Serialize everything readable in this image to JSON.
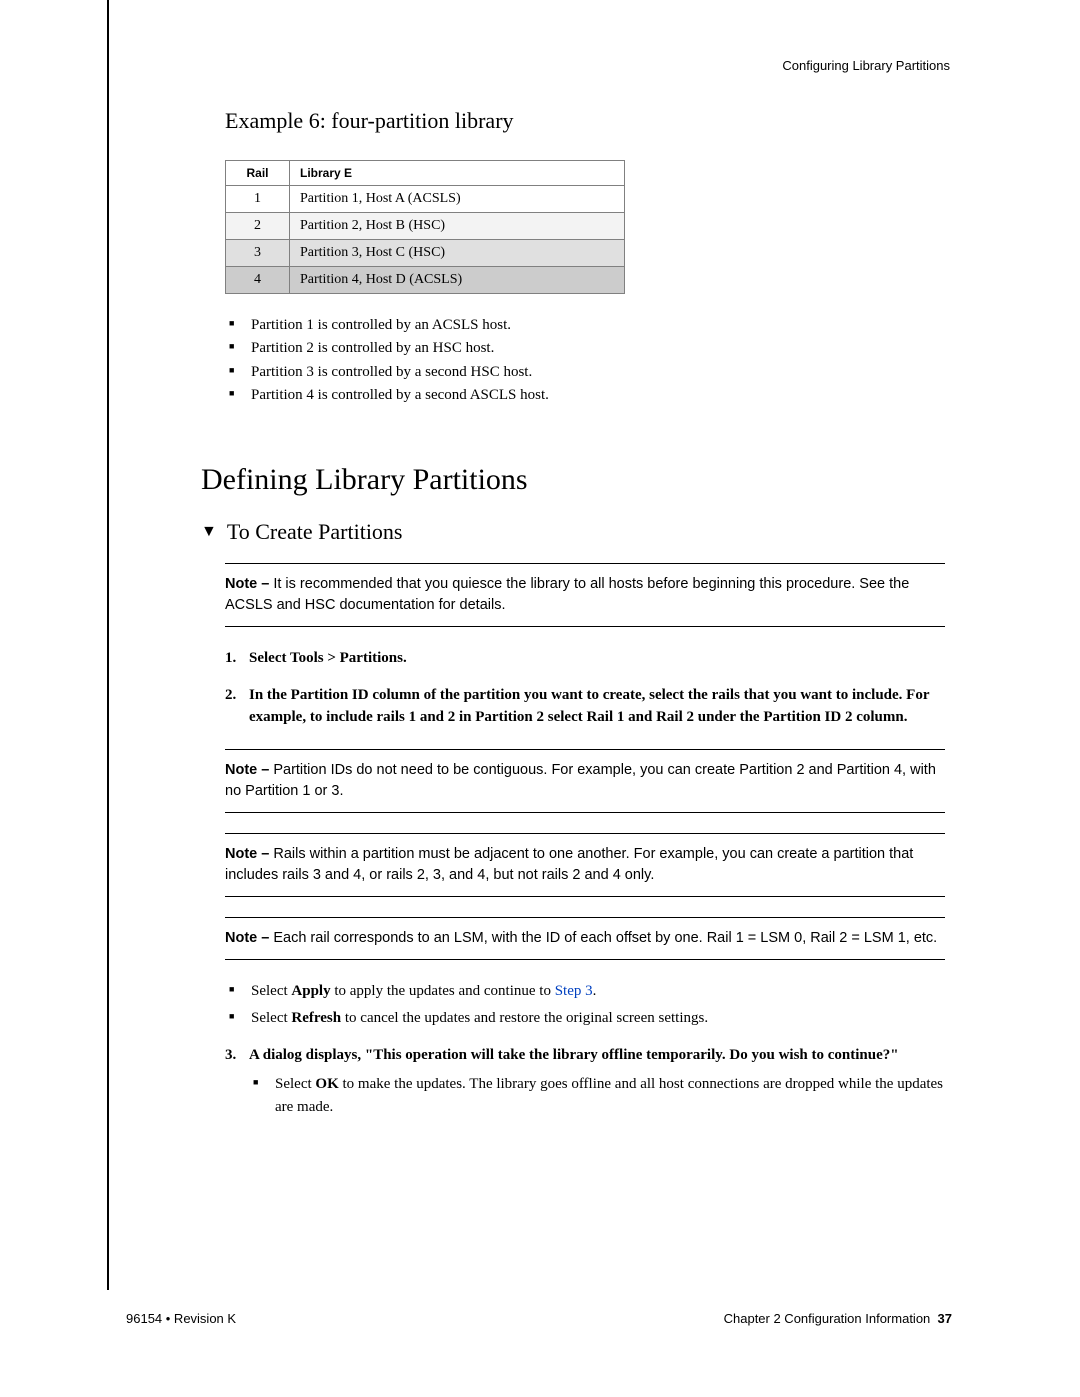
{
  "header": {
    "right": "Configuring Library Partitions"
  },
  "example": {
    "title": "Example 6: four-partition library",
    "table": {
      "headers": [
        "Rail",
        "Library E"
      ],
      "rows": [
        {
          "rail": "1",
          "lib": "Partition 1, Host A (ACSLS)",
          "shade": ""
        },
        {
          "rail": "2",
          "lib": "Partition 2, Host B (HSC)",
          "shade": "row-shade-1"
        },
        {
          "rail": "3",
          "lib": "Partition 3, Host C (HSC)",
          "shade": "row-shade-2"
        },
        {
          "rail": "4",
          "lib": "Partition 4, Host D (ACSLS)",
          "shade": "row-shade-3"
        }
      ]
    },
    "bullets": [
      "Partition 1 is controlled by an ACSLS host.",
      "Partition 2 is controlled by an HSC host.",
      "Partition 3 is controlled by a second HSC host.",
      "Partition 4 is controlled by a second ASCLS host."
    ]
  },
  "section_title": "Defining Library Partitions",
  "task_title": "To Create Partitions",
  "note1": {
    "label": "Note – ",
    "text": "It is recommended that you quiesce the library to all hosts before beginning this procedure. See the ACSLS and HSC documentation for details."
  },
  "step1": "Select Tools > Partitions.",
  "step2": "In the Partition ID column of the partition you want to create, select the rails that you want to include. For example, to include rails 1 and 2 in Partition 2 select Rail 1 and Rail 2 under the Partition ID 2 column.",
  "note2": {
    "label": "Note – ",
    "text": "Partition IDs do not need to be contiguous. For example, you can create Partition 2 and Partition 4, with no Partition 1 or 3."
  },
  "note3": {
    "label": "Note – ",
    "text": "Rails within a partition must be adjacent to one another.  For example, you can create a partition that includes rails 3 and 4, or rails 2, 3, and 4, but not rails 2 and 4 only."
  },
  "note4": {
    "label": "Note – ",
    "text": "Each rail corresponds to an LSM, with the ID of each offset by one. Rail 1 = LSM 0, Rail 2 = LSM 1, etc."
  },
  "apply_refresh": {
    "apply_pre": "Select ",
    "apply_bold": "Apply",
    "apply_mid": " to apply the updates and continue to ",
    "apply_link": "Step 3",
    "apply_post": ".",
    "refresh_pre": "Select ",
    "refresh_bold": "Refresh",
    "refresh_post": " to cancel the updates and restore the original screen settings."
  },
  "step3": "A dialog displays, \"This operation will take the library offline temporarily. Do you wish to continue?\"",
  "step3_sub": {
    "pre": "Select ",
    "bold": "OK",
    "post": " to make the updates. The library goes offline and all host connections are dropped while the updates are made."
  },
  "footer": {
    "left": "96154 • Revision K",
    "right_text": "Chapter 2 Configuration Information",
    "right_page": "37"
  },
  "colors": {
    "link": "#0040c0",
    "rule": "#000000",
    "table_border": "#808080"
  }
}
